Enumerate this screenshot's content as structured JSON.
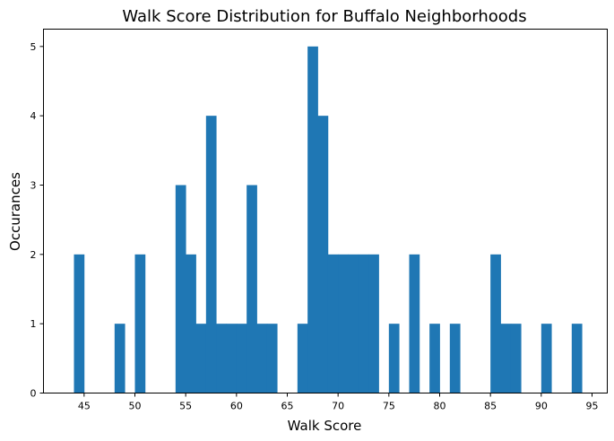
{
  "chart_data": {
    "type": "bar",
    "title": "Walk Score Distribution for Buffalo Neighborhoods",
    "xlabel": "Walk Score",
    "ylabel": "Occurances",
    "xlim": [
      41,
      96.5
    ],
    "ylim": [
      0,
      5.25
    ],
    "xticks": [
      45,
      50,
      55,
      60,
      65,
      70,
      75,
      80,
      85,
      90,
      95
    ],
    "yticks": [
      0,
      1,
      2,
      3,
      4,
      5
    ],
    "bin_width": 1,
    "color": "#1f77b4",
    "bins": [
      {
        "start": 44,
        "value": 2
      },
      {
        "start": 48,
        "value": 1
      },
      {
        "start": 50,
        "value": 2
      },
      {
        "start": 54,
        "value": 3
      },
      {
        "start": 55,
        "value": 2
      },
      {
        "start": 56,
        "value": 1
      },
      {
        "start": 57,
        "value": 4
      },
      {
        "start": 58,
        "value": 1
      },
      {
        "start": 59,
        "value": 1
      },
      {
        "start": 60,
        "value": 1
      },
      {
        "start": 61,
        "value": 3
      },
      {
        "start": 62,
        "value": 1
      },
      {
        "start": 63,
        "value": 1
      },
      {
        "start": 66,
        "value": 1
      },
      {
        "start": 67,
        "value": 5
      },
      {
        "start": 68,
        "value": 4
      },
      {
        "start": 69,
        "value": 2
      },
      {
        "start": 70,
        "value": 2
      },
      {
        "start": 71,
        "value": 2
      },
      {
        "start": 72,
        "value": 2
      },
      {
        "start": 73,
        "value": 2
      },
      {
        "start": 75,
        "value": 1
      },
      {
        "start": 77,
        "value": 2
      },
      {
        "start": 79,
        "value": 1
      },
      {
        "start": 81,
        "value": 1
      },
      {
        "start": 85,
        "value": 2
      },
      {
        "start": 86,
        "value": 1
      },
      {
        "start": 87,
        "value": 1
      },
      {
        "start": 90,
        "value": 1
      },
      {
        "start": 93,
        "value": 1
      }
    ]
  }
}
